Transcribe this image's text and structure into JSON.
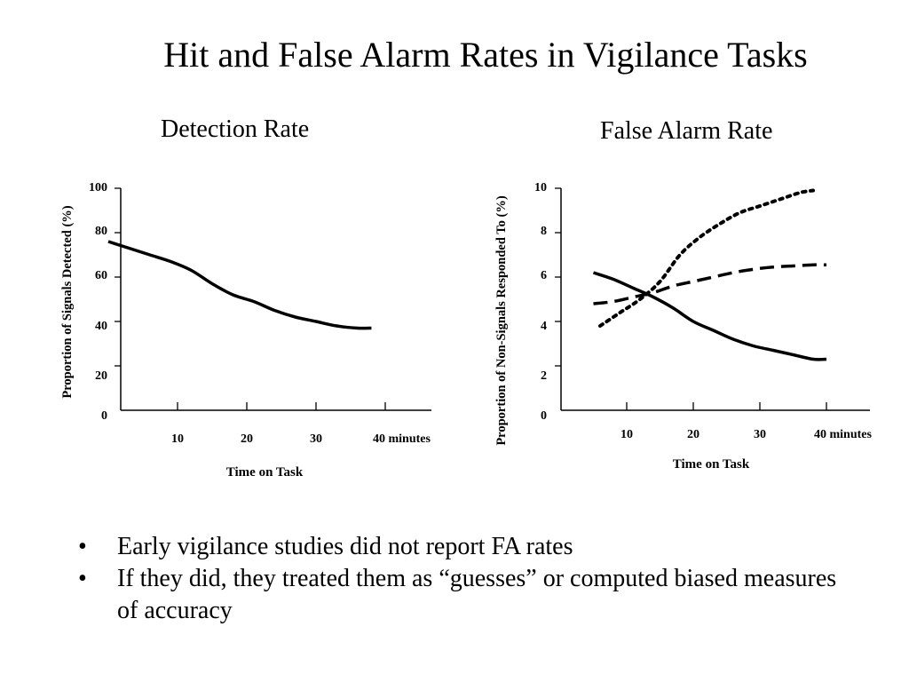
{
  "slide": {
    "title": "Hit and False Alarm Rates in Vigilance Tasks"
  },
  "chart_data": [
    {
      "type": "line",
      "title": "Detection Rate",
      "xlabel": "Time on Task",
      "ylabel": "Proportion of Signals Detected (%)",
      "x_tick_labels": [
        "10",
        "20",
        "30",
        "40 minutes"
      ],
      "y_tick_labels": [
        "0",
        "20",
        "40",
        "60",
        "80",
        "100"
      ],
      "xlim": [
        0,
        45
      ],
      "ylim": [
        0,
        100
      ],
      "grid": false,
      "series": [
        {
          "style": "solid",
          "x": [
            0,
            3,
            6,
            9,
            12,
            15,
            18,
            21,
            24,
            27,
            30,
            33,
            36,
            38
          ],
          "values": [
            76,
            73,
            70,
            67,
            63,
            57,
            52,
            49,
            45,
            42,
            40,
            38,
            37,
            37
          ]
        }
      ]
    },
    {
      "type": "line",
      "title": "False Alarm Rate",
      "xlabel": "Time on Task",
      "ylabel": "Proportion of Non-Signals Responded To (%)",
      "x_tick_labels": [
        "10",
        "20",
        "30",
        "40 minutes"
      ],
      "y_tick_labels": [
        "0",
        "2",
        "4",
        "6",
        "8",
        "10"
      ],
      "xlim": [
        0,
        45
      ],
      "ylim": [
        0,
        10
      ],
      "grid": false,
      "series": [
        {
          "style": "solid",
          "x": [
            5,
            8,
            11,
            14,
            17,
            20,
            23,
            26,
            29,
            32,
            35,
            38,
            40
          ],
          "values": [
            6.2,
            5.9,
            5.5,
            5.1,
            4.6,
            4.0,
            3.6,
            3.2,
            2.9,
            2.7,
            2.5,
            2.3,
            2.3
          ]
        },
        {
          "style": "dashed",
          "x": [
            5,
            8,
            11,
            14,
            17,
            20,
            23,
            26,
            29,
            32,
            35,
            38,
            40
          ],
          "values": [
            4.8,
            4.9,
            5.1,
            5.3,
            5.6,
            5.8,
            6.0,
            6.2,
            6.35,
            6.45,
            6.5,
            6.55,
            6.55
          ]
        },
        {
          "style": "dotted",
          "x": [
            6,
            9,
            12,
            15,
            18,
            21,
            24,
            27,
            30,
            33,
            36,
            38
          ],
          "values": [
            3.8,
            4.4,
            5.0,
            5.8,
            7.0,
            7.8,
            8.4,
            8.9,
            9.2,
            9.5,
            9.8,
            9.9
          ]
        }
      ]
    }
  ],
  "bullets": [
    {
      "marker": "•",
      "text": "Early vigilance studies did not report FA rates"
    },
    {
      "marker": "•",
      "text": "If they did, they treated them as “guesses” or computed biased measures of accuracy"
    }
  ]
}
